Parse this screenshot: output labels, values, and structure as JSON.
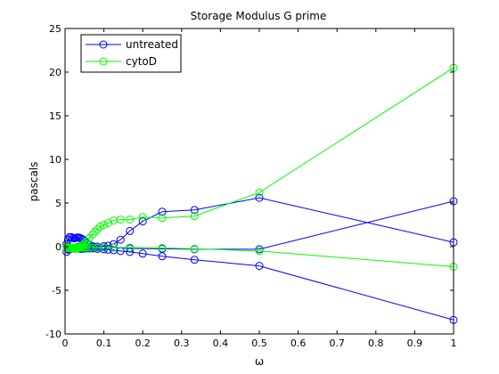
{
  "chart_data": {
    "type": "line",
    "title": "Storage Modulus G prime",
    "xlabel": "ω",
    "ylabel": "pascals",
    "xlim": [
      0,
      1
    ],
    "ylim": [
      -10,
      25
    ],
    "xticks": [
      0,
      0.1,
      0.2,
      0.3,
      0.4,
      0.5,
      0.6,
      0.7,
      0.8,
      0.9,
      1
    ],
    "xtick_labels": [
      "0",
      "0.1",
      "0.2",
      "0.3",
      "0.4",
      "0.5",
      "0.6",
      "0.7",
      "0.8",
      "0.9",
      "1"
    ],
    "yticks": [
      -10,
      -5,
      0,
      5,
      10,
      15,
      20,
      25
    ],
    "ytick_labels": [
      "-10",
      "-5",
      "0",
      "5",
      "10",
      "15",
      "20",
      "25"
    ],
    "grid": false,
    "legend_position": "top-left",
    "marker": "circle",
    "series": [
      {
        "name": "untreated",
        "color": "#0000ff",
        "lines": [
          {
            "x": [
              0.0039,
              0.0078,
              0.0117,
              0.0156,
              0.0195,
              0.0234,
              0.0273,
              0.0313,
              0.0352,
              0.0391,
              0.043,
              0.0469,
              0.0508,
              0.0547,
              0.0625,
              0.0714,
              0.0833,
              0.1,
              0.125,
              0.1667,
              0.25,
              0.3333,
              0.5,
              1
            ],
            "y": [
              0.3,
              0.8,
              1.1,
              1.1,
              1.0,
              0.95,
              1.0,
              1.05,
              1.05,
              1.0,
              0.9,
              0.8,
              0.6,
              0.4,
              0.2,
              0.05,
              -0.05,
              -0.1,
              -0.1,
              -0.2,
              -0.25,
              -0.3,
              -0.3,
              5.2
            ]
          },
          {
            "x": [
              0.0039,
              0.0078,
              0.0117,
              0.0156,
              0.0195,
              0.0234,
              0.0273,
              0.0313,
              0.0352,
              0.0391,
              0.043,
              0.0469,
              0.0508,
              0.0547,
              0.0625,
              0.0714,
              0.0833,
              0.1,
              0.1111,
              0.125,
              0.1429,
              0.1667,
              0.2,
              0.25,
              0.3333,
              0.5,
              1
            ],
            "y": [
              -0.6,
              -0.35,
              -0.3,
              -0.25,
              -0.2,
              -0.15,
              -0.1,
              -0.05,
              0.0,
              0.0,
              0.0,
              -0.05,
              -0.1,
              -0.1,
              -0.05,
              0.0,
              0.0,
              0.05,
              0.1,
              0.3,
              0.8,
              1.8,
              2.9,
              4.0,
              4.2,
              5.6,
              0.5
            ]
          },
          {
            "x": [
              0.0039,
              0.0078,
              0.0117,
              0.0156,
              0.0195,
              0.0234,
              0.0273,
              0.0313,
              0.0352,
              0.0391,
              0.043,
              0.0469,
              0.0508,
              0.0547,
              0.0625,
              0.0714,
              0.0833,
              0.1,
              0.1111,
              0.125,
              0.1429,
              0.1667,
              0.2,
              0.25,
              0.3333,
              0.5,
              1
            ],
            "y": [
              -0.05,
              -0.1,
              -0.1,
              -0.15,
              -0.15,
              -0.2,
              -0.2,
              -0.2,
              -0.2,
              -0.25,
              -0.25,
              -0.2,
              -0.2,
              -0.2,
              -0.2,
              -0.2,
              -0.25,
              -0.3,
              -0.35,
              -0.4,
              -0.5,
              -0.6,
              -0.8,
              -1.1,
              -1.5,
              -2.2,
              -8.4
            ]
          }
        ]
      },
      {
        "name": "cytoD",
        "color": "#00ff00",
        "lines": [
          {
            "x": [
              0.0039,
              0.0078,
              0.0117,
              0.0156,
              0.0195,
              0.0234,
              0.0273,
              0.0313,
              0.0352,
              0.0391,
              0.043,
              0.0469,
              0.0508,
              0.0547,
              0.0625,
              0.0714,
              0.0769,
              0.0833,
              0.0909,
              0.1,
              0.1111,
              0.125,
              0.1429,
              0.1667,
              0.2,
              0.25,
              0.3333,
              0.5,
              1
            ],
            "y": [
              -0.1,
              -0.1,
              -0.15,
              -0.2,
              -0.2,
              -0.25,
              -0.25,
              -0.2,
              -0.15,
              -0.05,
              0.1,
              0.25,
              0.4,
              0.6,
              1.0,
              1.4,
              1.7,
              2.0,
              2.3,
              2.5,
              2.7,
              3.0,
              3.1,
              3.1,
              3.4,
              3.3,
              3.5,
              6.2,
              20.5
            ]
          },
          {
            "x": [
              0.0039,
              0.0078,
              0.0117,
              0.0156,
              0.0195,
              0.0234,
              0.0273,
              0.0313,
              0.0352,
              0.0391,
              0.043,
              0.0469,
              0.0508,
              0.0547,
              0.0625,
              0.0714,
              0.0833,
              0.1,
              0.125,
              0.1667,
              0.25,
              0.3333,
              0.5,
              1
            ],
            "y": [
              -0.05,
              -0.1,
              -0.1,
              -0.1,
              -0.1,
              -0.1,
              -0.1,
              -0.1,
              -0.1,
              -0.1,
              -0.1,
              -0.1,
              -0.1,
              -0.1,
              -0.1,
              -0.1,
              -0.1,
              -0.1,
              -0.1,
              -0.1,
              -0.15,
              -0.25,
              -0.5,
              -2.3
            ]
          }
        ]
      }
    ]
  }
}
